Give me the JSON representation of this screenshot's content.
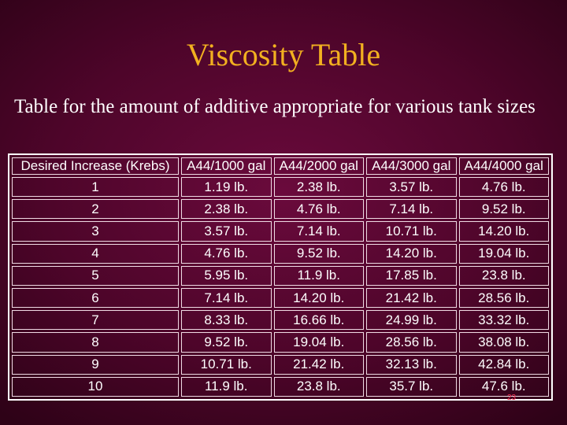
{
  "slide": {
    "title": "Viscosity Table",
    "subtitle": "Table for the amount of additive appropriate for various tank sizes",
    "page_number": "23"
  },
  "colors": {
    "background": "#5a0731",
    "title": "#f2b020",
    "text": "#ffffff"
  },
  "table": {
    "headers": [
      "Desired Increase (Krebs)",
      "A44/1000 gal",
      "A44/2000 gal",
      "A44/3000 gal",
      "A44/4000 gal"
    ],
    "rows": [
      [
        "1",
        "1.19 lb.",
        "2.38 lb.",
        "3.57 lb.",
        "4.76 lb."
      ],
      [
        "2",
        "2.38 lb.",
        "4.76 lb.",
        "7.14 lb.",
        "9.52 lb."
      ],
      [
        "3",
        "3.57 lb.",
        "7.14 lb.",
        "10.71 lb.",
        "14.20 lb."
      ],
      [
        "4",
        "4.76 lb.",
        "9.52 lb.",
        "14.20 lb.",
        "19.04 lb."
      ],
      [
        "5",
        "5.95 lb.",
        "11.9 lb.",
        "17.85 lb.",
        "23.8 lb."
      ],
      [
        "6",
        "7.14 lb.",
        "14.20 lb.",
        "21.42 lb.",
        "28.56 lb."
      ],
      [
        "7",
        "8.33 lb.",
        "16.66 lb.",
        "24.99 lb.",
        "33.32 lb."
      ],
      [
        "8",
        "9.52 lb.",
        "19.04 lb.",
        "28.56 lb.",
        "38.08 lb."
      ],
      [
        "9",
        "10.71 lb.",
        "21.42 lb.",
        "32.13 lb.",
        "42.84 lb."
      ],
      [
        "10",
        "11.9 lb.",
        "23.8 lb.",
        "35.7 lb.",
        "47.6 lb."
      ]
    ]
  }
}
